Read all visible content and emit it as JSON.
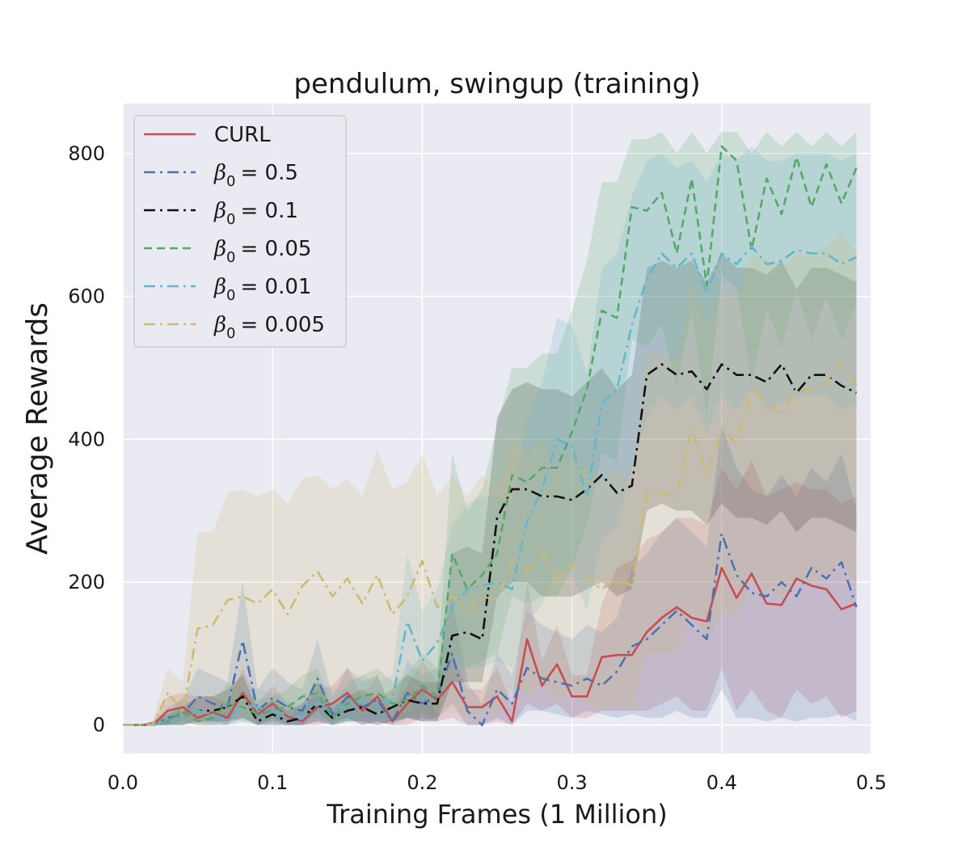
{
  "chart_data": {
    "type": "line",
    "title": "pendulum, swingup (training)",
    "xlabel": "Training Frames (1 Million)",
    "ylabel": "Average Rewards",
    "xlim": [
      0.0,
      0.5
    ],
    "ylim": [
      -40,
      870
    ],
    "xticks": [
      "0.0",
      "0.1",
      "0.2",
      "0.3",
      "0.4",
      "0.5"
    ],
    "yticks": [
      "0",
      "200",
      "400",
      "600",
      "800"
    ],
    "grid": true,
    "legend_position": "upper-left",
    "background": "#eaeaf2",
    "x": [
      0.0,
      0.01,
      0.02,
      0.03,
      0.04,
      0.05,
      0.06,
      0.07,
      0.08,
      0.09,
      0.1,
      0.11,
      0.12,
      0.13,
      0.14,
      0.15,
      0.16,
      0.17,
      0.18,
      0.19,
      0.2,
      0.21,
      0.22,
      0.23,
      0.24,
      0.25,
      0.26,
      0.27,
      0.28,
      0.29,
      0.3,
      0.31,
      0.32,
      0.33,
      0.34,
      0.35,
      0.36,
      0.37,
      0.38,
      0.39,
      0.4,
      0.41,
      0.42,
      0.43,
      0.44,
      0.45,
      0.46,
      0.47,
      0.48,
      0.49
    ],
    "series": [
      {
        "name": "CURL",
        "legend_base": "CURL",
        "legend_value": "",
        "color": "#c44e52",
        "dash": "",
        "values": [
          0,
          0,
          0,
          20,
          25,
          10,
          18,
          10,
          45,
          15,
          30,
          12,
          5,
          25,
          30,
          45,
          20,
          40,
          5,
          30,
          50,
          35,
          60,
          25,
          25,
          40,
          5,
          120,
          55,
          85,
          40,
          40,
          95,
          98,
          98,
          130,
          150,
          165,
          150,
          145,
          220,
          178,
          212,
          170,
          168,
          205,
          195,
          190,
          162,
          170
        ],
        "band": [
          [
            0,
            0,
            0,
            0,
            5,
            0,
            0,
            0,
            10,
            0,
            5,
            0,
            0,
            0,
            5,
            10,
            0,
            5,
            0,
            0,
            10,
            5,
            10,
            0,
            0,
            5,
            0,
            30,
            20,
            30,
            10,
            10,
            20,
            20,
            20,
            20,
            30,
            40,
            20,
            20,
            80,
            20,
            50,
            20,
            10,
            50,
            30,
            40,
            10,
            20
          ],
          [
            0,
            0,
            5,
            40,
            45,
            40,
            40,
            30,
            80,
            30,
            55,
            30,
            20,
            50,
            55,
            80,
            40,
            70,
            20,
            55,
            90,
            60,
            100,
            50,
            50,
            80,
            30,
            200,
            90,
            140,
            70,
            70,
            170,
            220,
            230,
            260,
            270,
            290,
            290,
            280,
            360,
            330,
            370,
            320,
            330,
            340,
            330,
            330,
            310,
            320
          ]
        ]
      },
      {
        "name": "β0 = 0.5",
        "legend_base": "β",
        "legend_value": "= 0.5",
        "color": "#4c72b0",
        "dash": "14 6 3 6",
        "values": [
          0,
          0,
          0,
          10,
          15,
          40,
          30,
          25,
          118,
          20,
          38,
          25,
          20,
          65,
          15,
          40,
          25,
          35,
          5,
          45,
          30,
          40,
          100,
          20,
          0,
          50,
          30,
          80,
          65,
          60,
          55,
          65,
          55,
          75,
          110,
          120,
          140,
          160,
          140,
          120,
          268,
          210,
          185,
          180,
          200,
          180,
          220,
          205,
          228,
          165
        ],
        "band": [
          [
            0,
            0,
            0,
            0,
            0,
            10,
            5,
            0,
            40,
            0,
            10,
            0,
            0,
            20,
            0,
            10,
            0,
            5,
            0,
            10,
            5,
            10,
            30,
            0,
            0,
            10,
            0,
            20,
            20,
            15,
            10,
            20,
            15,
            10,
            15,
            10,
            10,
            20,
            10,
            10,
            50,
            10,
            10,
            5,
            10,
            5,
            10,
            10,
            15,
            5
          ],
          [
            0,
            0,
            5,
            25,
            35,
            80,
            70,
            60,
            200,
            50,
            80,
            60,
            50,
            120,
            40,
            80,
            60,
            70,
            20,
            90,
            70,
            80,
            180,
            60,
            30,
            100,
            70,
            160,
            140,
            130,
            120,
            140,
            130,
            150,
            220,
            240,
            270,
            290,
            270,
            250,
            420,
            360,
            330,
            320,
            350,
            320,
            360,
            340,
            380,
            300
          ]
        ]
      },
      {
        "name": "β0 = 0.1",
        "legend_base": "β",
        "legend_value": "= 0.1",
        "color": "#111111",
        "dash": "14 6 3 6",
        "values": [
          0,
          0,
          0,
          5,
          10,
          20,
          20,
          25,
          40,
          5,
          15,
          5,
          10,
          30,
          10,
          20,
          25,
          15,
          25,
          35,
          30,
          30,
          125,
          130,
          120,
          290,
          330,
          330,
          320,
          320,
          315,
          330,
          350,
          325,
          335,
          490,
          505,
          490,
          495,
          470,
          505,
          490,
          490,
          480,
          505,
          465,
          490,
          490,
          475,
          465
        ],
        "band": [
          [
            0,
            0,
            0,
            0,
            0,
            5,
            5,
            5,
            10,
            0,
            0,
            0,
            0,
            5,
            0,
            5,
            5,
            0,
            5,
            10,
            5,
            5,
            60,
            60,
            60,
            180,
            200,
            200,
            180,
            180,
            180,
            190,
            200,
            180,
            190,
            300,
            310,
            300,
            300,
            280,
            310,
            290,
            290,
            280,
            300,
            270,
            290,
            290,
            280,
            270
          ],
          [
            0,
            0,
            5,
            15,
            25,
            40,
            40,
            50,
            70,
            20,
            35,
            20,
            30,
            60,
            25,
            40,
            50,
            35,
            50,
            70,
            60,
            60,
            240,
            250,
            240,
            430,
            470,
            480,
            470,
            470,
            460,
            480,
            500,
            470,
            490,
            640,
            650,
            640,
            650,
            620,
            660,
            640,
            640,
            630,
            650,
            610,
            640,
            640,
            630,
            620
          ]
        ]
      },
      {
        "name": "β0 = 0.05",
        "legend_base": "β",
        "legend_value": "= 0.05",
        "color": "#55a868",
        "dash": "10 6",
        "values": [
          0,
          0,
          0,
          5,
          20,
          5,
          10,
          30,
          25,
          15,
          20,
          25,
          40,
          45,
          10,
          30,
          40,
          45,
          30,
          35,
          55,
          40,
          240,
          190,
          210,
          240,
          350,
          340,
          360,
          360,
          410,
          470,
          580,
          570,
          725,
          720,
          745,
          660,
          765,
          615,
          810,
          790,
          665,
          765,
          715,
          795,
          725,
          785,
          730,
          780
        ],
        "band": [
          [
            0,
            0,
            0,
            0,
            5,
            0,
            0,
            10,
            5,
            0,
            5,
            5,
            10,
            10,
            0,
            5,
            10,
            10,
            5,
            10,
            15,
            10,
            100,
            80,
            90,
            100,
            180,
            170,
            180,
            180,
            220,
            280,
            380,
            370,
            540,
            530,
            560,
            470,
            580,
            430,
            630,
            610,
            480,
            580,
            530,
            610,
            540,
            600,
            540,
            590
          ],
          [
            0,
            0,
            5,
            15,
            40,
            20,
            25,
            60,
            50,
            35,
            40,
            50,
            70,
            80,
            25,
            60,
            70,
            80,
            60,
            70,
            100,
            80,
            380,
            300,
            330,
            420,
            500,
            500,
            520,
            520,
            580,
            650,
            760,
            760,
            820,
            820,
            830,
            800,
            830,
            800,
            830,
            830,
            800,
            830,
            810,
            830,
            810,
            830,
            810,
            830
          ]
        ]
      },
      {
        "name": "β0 = 0.01",
        "legend_base": "β",
        "legend_value": "= 0.01",
        "color": "#64b5cd",
        "dash": "14 6 3 6",
        "values": [
          0,
          0,
          0,
          5,
          10,
          20,
          15,
          5,
          30,
          25,
          20,
          15,
          10,
          30,
          25,
          25,
          35,
          30,
          35,
          145,
          90,
          115,
          165,
          190,
          195,
          200,
          190,
          285,
          330,
          400,
          390,
          320,
          450,
          470,
          560,
          625,
          660,
          640,
          660,
          605,
          660,
          645,
          670,
          645,
          650,
          665,
          660,
          660,
          645,
          655
        ],
        "band": [
          [
            0,
            0,
            0,
            0,
            0,
            5,
            0,
            0,
            5,
            5,
            0,
            0,
            0,
            5,
            5,
            5,
            10,
            5,
            10,
            60,
            30,
            40,
            60,
            80,
            80,
            90,
            80,
            140,
            170,
            220,
            210,
            160,
            260,
            280,
            360,
            430,
            460,
            440,
            460,
            410,
            460,
            440,
            470,
            440,
            450,
            460,
            460,
            460,
            440,
            450
          ],
          [
            0,
            0,
            5,
            15,
            25,
            40,
            35,
            15,
            60,
            50,
            45,
            35,
            25,
            60,
            50,
            50,
            70,
            60,
            70,
            240,
            160,
            190,
            280,
            310,
            320,
            320,
            310,
            430,
            480,
            570,
            560,
            490,
            640,
            660,
            740,
            790,
            800,
            780,
            790,
            760,
            800,
            790,
            810,
            790,
            790,
            800,
            800,
            800,
            790,
            800
          ]
        ]
      },
      {
        "name": "β0 = 0.005",
        "legend_base": "β",
        "legend_value": "= 0.005",
        "color": "#ccb974",
        "dash": "14 6 3 6",
        "values": [
          0,
          0,
          0,
          45,
          20,
          135,
          140,
          175,
          180,
          170,
          190,
          155,
          195,
          215,
          180,
          205,
          170,
          210,
          155,
          180,
          230,
          165,
          180,
          160,
          180,
          175,
          230,
          215,
          240,
          205,
          225,
          205,
          190,
          205,
          195,
          325,
          325,
          320,
          415,
          350,
          410,
          395,
          470,
          450,
          435,
          470,
          470,
          480,
          510,
          475
        ],
        "band": [
          [
            0,
            0,
            0,
            5,
            0,
            10,
            10,
            20,
            20,
            15,
            25,
            10,
            30,
            40,
            20,
            40,
            15,
            40,
            10,
            20,
            50,
            15,
            20,
            10,
            20,
            15,
            50,
            40,
            60,
            30,
            50,
            30,
            20,
            30,
            20,
            100,
            100,
            100,
            160,
            120,
            160,
            150,
            200,
            190,
            180,
            200,
            200,
            210,
            230,
            200
          ],
          [
            0,
            0,
            5,
            80,
            60,
            270,
            270,
            325,
            330,
            320,
            330,
            310,
            345,
            350,
            330,
            345,
            320,
            385,
            330,
            340,
            380,
            320,
            350,
            320,
            350,
            330,
            400,
            380,
            400,
            360,
            380,
            360,
            340,
            360,
            340,
            520,
            520,
            510,
            620,
            560,
            610,
            600,
            660,
            650,
            640,
            660,
            660,
            670,
            690,
            660
          ]
        ]
      }
    ]
  }
}
